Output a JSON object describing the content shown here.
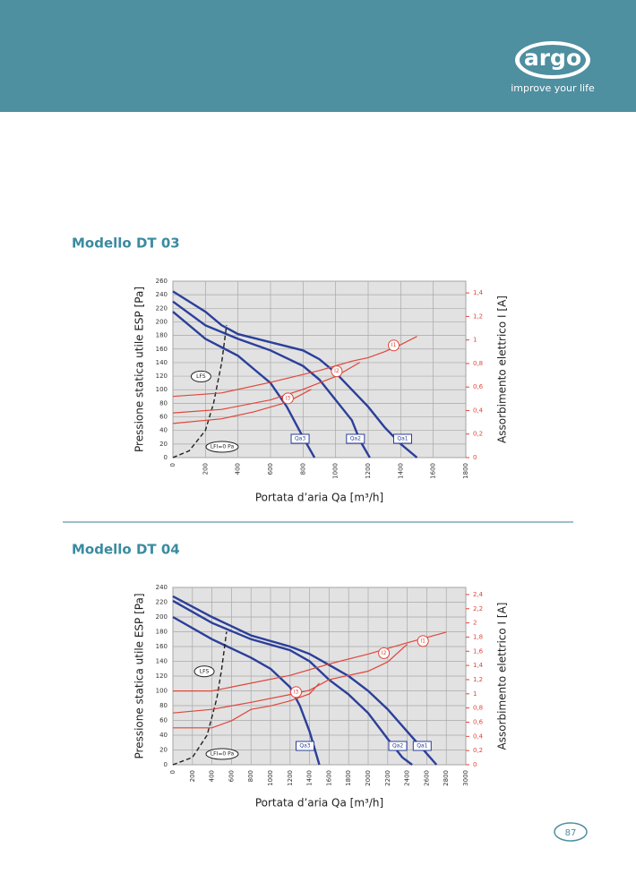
{
  "header": {
    "logo": "argo",
    "tagline": "improve your life"
  },
  "page_number": "87",
  "chart_data": [
    {
      "type": "line",
      "title": "Modello DT 03",
      "xlabel": "Portata d’aria Qa [m³/h]",
      "ylabel": "Pressione statica utile ESP [Pa]",
      "y2label": "Assorbimento elettrico I [A]",
      "xlim": [
        0,
        1800
      ],
      "xticks": [
        0,
        200,
        400,
        600,
        800,
        1000,
        1200,
        1400,
        1600,
        1800
      ],
      "ylim": [
        0,
        260
      ],
      "yticks": [
        0,
        20,
        40,
        60,
        80,
        100,
        120,
        140,
        160,
        180,
        200,
        220,
        240,
        260
      ],
      "y2lim": [
        0,
        1.5
      ],
      "y2ticks": [
        0,
        {
          "value": 0.2,
          "label": "0,2"
        },
        {
          "value": 0.4,
          "label": "0,4"
        },
        {
          "value": 0.6,
          "label": "0,6"
        },
        {
          "value": 0.8,
          "label": "0,8"
        },
        1,
        {
          "value": 1.2,
          "label": "1,2"
        },
        {
          "value": 1.4,
          "label": "1,4"
        }
      ],
      "grid": true,
      "annotations": [
        "LFS",
        "LFI=0 Pa"
      ],
      "series": [
        {
          "name": "Qa1",
          "color": "#2b3f9a",
          "x": [
            0,
            200,
            300,
            400,
            600,
            800,
            900,
            1000,
            1100,
            1200,
            1300,
            1400,
            1500
          ],
          "values": [
            245,
            215,
            195,
            182,
            170,
            158,
            145,
            125,
            100,
            75,
            45,
            20,
            0
          ]
        },
        {
          "name": "Qa2",
          "color": "#2b3f9a",
          "x": [
            0,
            200,
            400,
            600,
            800,
            900,
            1000,
            1100,
            1150,
            1210
          ],
          "values": [
            230,
            195,
            175,
            158,
            135,
            115,
            85,
            55,
            25,
            0
          ]
        },
        {
          "name": "Qa3",
          "color": "#2b3f9a",
          "x": [
            0,
            200,
            400,
            500,
            600,
            700,
            800,
            870
          ],
          "values": [
            215,
            175,
            150,
            130,
            110,
            75,
            30,
            0
          ]
        },
        {
          "name": "LFS",
          "color": "#222222",
          "dashed": true,
          "x": [
            0,
            100,
            200,
            250,
            300,
            330
          ],
          "values": [
            0,
            10,
            40,
            80,
            140,
            195
          ]
        },
        {
          "name": "I1",
          "color": "#e0463a",
          "axis": "y2",
          "x": [
            0,
            300,
            600,
            900,
            1100,
            1200,
            1300,
            1400,
            1500
          ],
          "values": [
            0.52,
            0.55,
            0.64,
            0.74,
            0.82,
            0.85,
            0.9,
            0.96,
            1.03
          ]
        },
        {
          "name": "I2",
          "color": "#e0463a",
          "axis": "y2",
          "x": [
            0,
            300,
            600,
            800,
            1000,
            1150
          ],
          "values": [
            0.38,
            0.41,
            0.49,
            0.58,
            0.69,
            0.81
          ]
        },
        {
          "name": "I3",
          "color": "#e0463a",
          "axis": "y2",
          "x": [
            0,
            300,
            500,
            700,
            850
          ],
          "values": [
            0.29,
            0.33,
            0.39,
            0.47,
            0.58
          ]
        }
      ]
    },
    {
      "type": "line",
      "title": "Modello DT 04",
      "xlabel": "Portata d’aria Qa [m³/h]",
      "ylabel": "Pressione statica utile ESP [Pa]",
      "y2label": "Assorbimento elettrico I [A]",
      "xlim": [
        0,
        3000
      ],
      "xticks": [
        0,
        200,
        400,
        600,
        800,
        1000,
        1200,
        1400,
        1600,
        1800,
        2000,
        2200,
        2400,
        2600,
        2800,
        3000
      ],
      "ylim": [
        0,
        240
      ],
      "yticks": [
        0,
        20,
        40,
        60,
        80,
        100,
        120,
        140,
        160,
        180,
        200,
        220,
        240
      ],
      "y2lim": [
        0,
        2.5
      ],
      "y2ticks": [
        0,
        {
          "value": 0.2,
          "label": "0,2"
        },
        {
          "value": 0.4,
          "label": "0,4"
        },
        {
          "value": 0.6,
          "label": "0,6"
        },
        {
          "value": 0.8,
          "label": "0,8"
        },
        1,
        {
          "value": 1.2,
          "label": "1,2"
        },
        {
          "value": 1.4,
          "label": "1,4"
        },
        {
          "value": 1.6,
          "label": "1,6"
        },
        {
          "value": 1.8,
          "label": "1,8"
        },
        2,
        {
          "value": 2.2,
          "label": "2,2"
        },
        {
          "value": 2.4,
          "label": "2,4"
        }
      ],
      "grid": true,
      "annotations": [
        "LFS",
        "LFI=0 Pa"
      ],
      "series": [
        {
          "name": "Qa1",
          "color": "#2b3f9a",
          "x": [
            0,
            400,
            800,
            1200,
            1400,
            1600,
            1800,
            2000,
            2200,
            2400,
            2600,
            2700
          ],
          "values": [
            228,
            200,
            175,
            160,
            150,
            135,
            120,
            100,
            75,
            45,
            15,
            0
          ]
        },
        {
          "name": "Qa2",
          "color": "#2b3f9a",
          "x": [
            0,
            400,
            800,
            1200,
            1400,
            1600,
            1800,
            2000,
            2200,
            2350,
            2450
          ],
          "values": [
            222,
            192,
            170,
            155,
            140,
            115,
            95,
            70,
            35,
            10,
            0
          ]
        },
        {
          "name": "Qa3",
          "color": "#2b3f9a",
          "x": [
            0,
            400,
            800,
            1000,
            1200,
            1300,
            1400,
            1500
          ],
          "values": [
            200,
            170,
            145,
            130,
            105,
            80,
            45,
            0
          ]
        },
        {
          "name": "LFS",
          "color": "#222222",
          "dashed": true,
          "x": [
            0,
            200,
            350,
            450,
            500,
            550
          ],
          "values": [
            0,
            10,
            40,
            90,
            130,
            180
          ]
        },
        {
          "name": "I1",
          "color": "#e0463a",
          "axis": "y2",
          "x": [
            0,
            400,
            800,
            1200,
            1600,
            2000,
            2400,
            2800
          ],
          "values": [
            1.04,
            1.04,
            1.15,
            1.26,
            1.42,
            1.56,
            1.72,
            1.87
          ]
        },
        {
          "name": "I2",
          "color": "#e0463a",
          "axis": "y2",
          "x": [
            0,
            400,
            800,
            1200,
            1400,
            1600,
            2000,
            2200,
            2400
          ],
          "values": [
            0.73,
            0.78,
            0.88,
            0.99,
            1.05,
            1.2,
            1.32,
            1.45,
            1.7
          ]
        },
        {
          "name": "I3",
          "color": "#e0463a",
          "axis": "y2",
          "x": [
            0,
            400,
            600,
            800,
            1000,
            1200,
            1400,
            1500
          ],
          "values": [
            0.52,
            0.52,
            0.62,
            0.78,
            0.83,
            0.9,
            1.0,
            1.15
          ]
        }
      ]
    }
  ]
}
